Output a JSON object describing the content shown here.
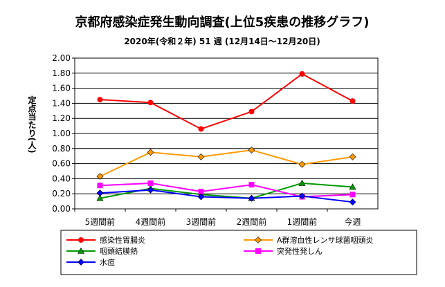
{
  "chart_data": {
    "type": "line",
    "title": "京都府感染症発生動向調査(上位5疾患の推移グラフ)",
    "subtitle": "2020年(令和２年) 51 週 (12月14日～12月20日)",
    "ylabel": "定点当たり(人)",
    "xlabel": "",
    "categories": [
      "5週間前",
      "4週間前",
      "3週間前",
      "2週間前",
      "1週間前",
      "今週"
    ],
    "y_ticks": [
      "0.00",
      "0.20",
      "0.40",
      "0.60",
      "0.80",
      "1.00",
      "1.20",
      "1.40",
      "1.60",
      "1.80",
      "2.00"
    ],
    "ylim": [
      0,
      2.0
    ],
    "grid": true,
    "legend_position": "bottom",
    "series": [
      {
        "name": "感染性胃腸炎",
        "color": "#ff0000",
        "marker": "circle",
        "values": [
          1.45,
          1.41,
          1.06,
          1.29,
          1.79,
          1.43
        ]
      },
      {
        "name": "A群溶血性レンサ球菌咽頭炎",
        "color": "#ff9900",
        "marker": "diamond",
        "values": [
          0.43,
          0.75,
          0.69,
          0.78,
          0.59,
          0.69
        ]
      },
      {
        "name": "咽頭結膜熱",
        "color": "#009900",
        "marker": "triangle",
        "values": [
          0.14,
          0.27,
          0.19,
          0.14,
          0.34,
          0.29
        ]
      },
      {
        "name": "突発性発しん",
        "color": "#ff00ff",
        "marker": "square",
        "values": [
          0.31,
          0.34,
          0.23,
          0.32,
          0.16,
          0.19
        ]
      },
      {
        "name": "水痘",
        "color": "#0000ff",
        "marker": "diamond",
        "values": [
          0.21,
          0.25,
          0.16,
          0.14,
          0.17,
          0.09
        ]
      }
    ]
  }
}
